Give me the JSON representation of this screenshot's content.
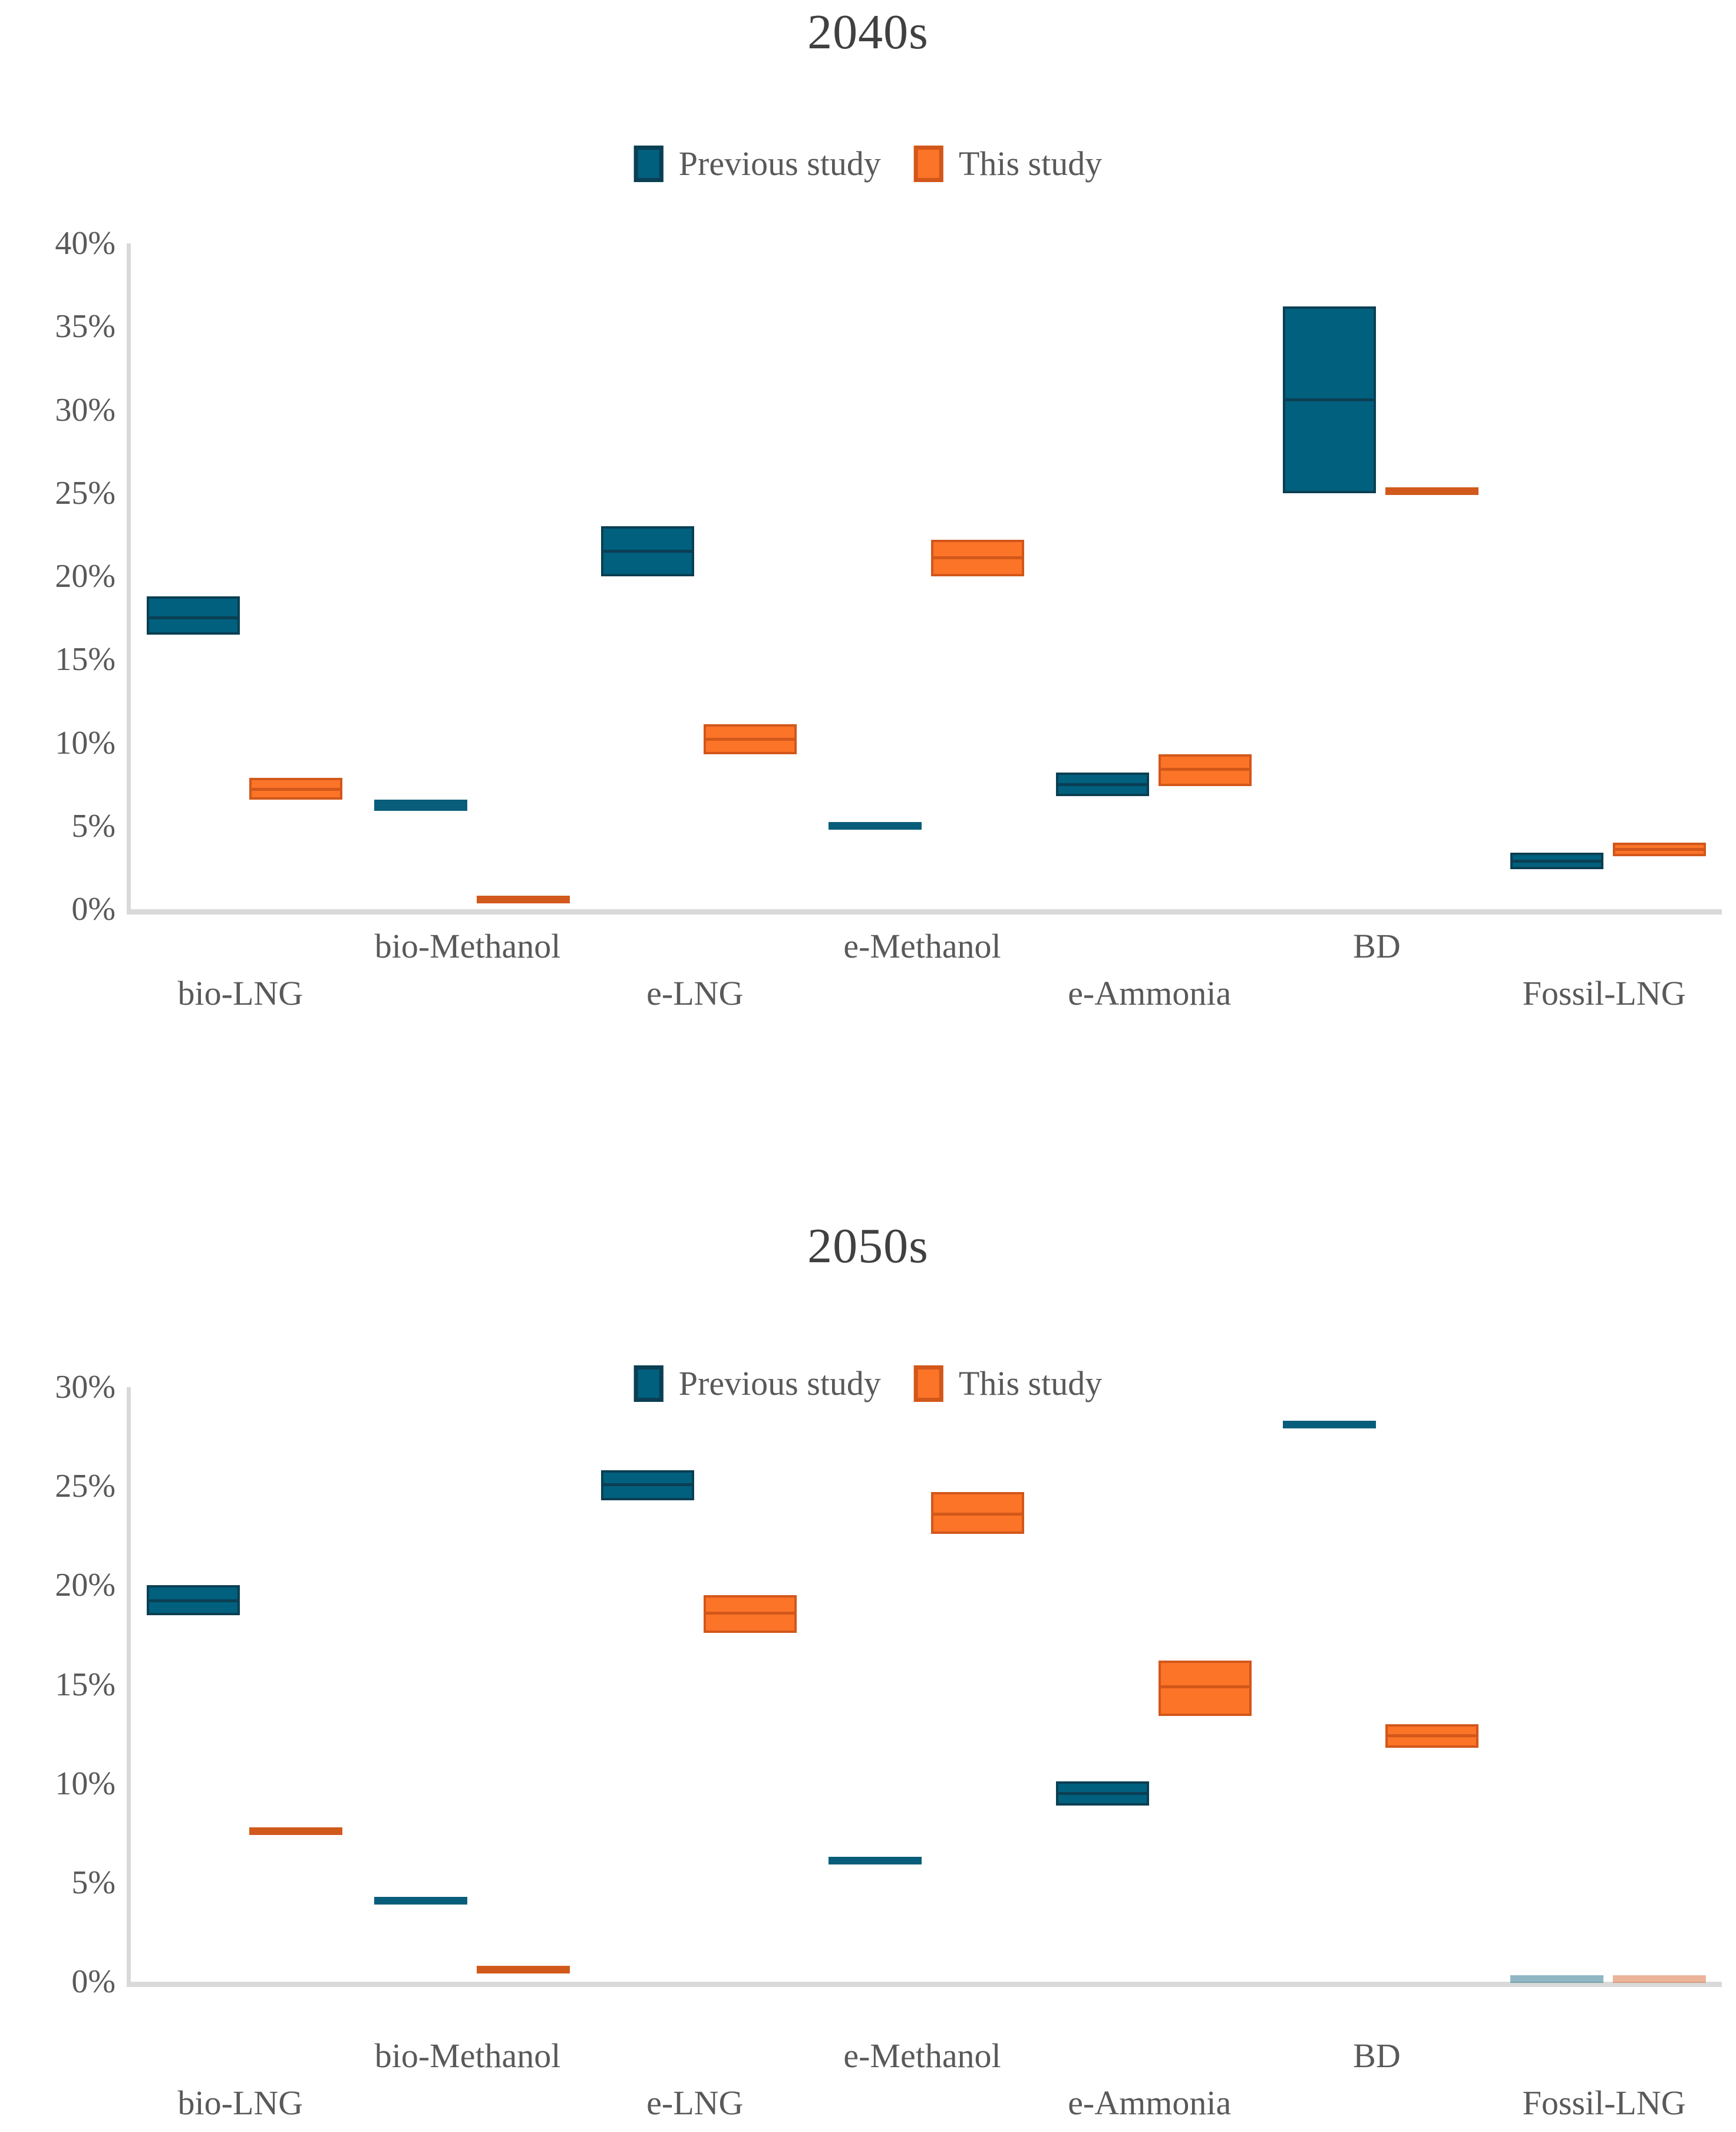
{
  "colors": {
    "previous_fill": "#01607E",
    "previous_border": "#0B3F53",
    "previous_line": "#085E7A",
    "this_fill": "#FB7428",
    "this_border": "#D2571A",
    "this_line": "#D2591C",
    "axis": "#D9D9D9",
    "tick_text": "#595959",
    "title_text": "#404040"
  },
  "legend": {
    "previous_label": "Previous study",
    "this_label": "This study"
  },
  "chart_data": [
    {
      "type": "box",
      "title": "2040s",
      "ylabel": "",
      "xlabel": "",
      "ylim": [
        0,
        40
      ],
      "ytick_step": 5,
      "ytick_format": "percent",
      "grid": false,
      "legend_position": "top-center",
      "categories": [
        {
          "label": "bio-LNG",
          "row": "lower"
        },
        {
          "label": "bio-Methanol",
          "row": "upper"
        },
        {
          "label": "e-LNG",
          "row": "lower"
        },
        {
          "label": "e-Methanol",
          "row": "upper"
        },
        {
          "label": "e-Ammonia",
          "row": "lower"
        },
        {
          "label": "BD",
          "row": "upper"
        },
        {
          "label": "Fossil-LNG",
          "row": "lower"
        }
      ],
      "series": [
        {
          "name": "Previous study",
          "boxes": [
            {
              "low": 16.5,
              "median": 17.5,
              "high": 18.8
            },
            {
              "low": 5.9,
              "median": 6.3,
              "high": 6.6
            },
            {
              "low": 20.0,
              "median": 21.5,
              "high": 23.0
            },
            {
              "low": 4.8,
              "median": 5.0,
              "high": 5.2
            },
            {
              "low": 6.8,
              "median": 7.5,
              "high": 8.2
            },
            {
              "low": 25.0,
              "median": 30.6,
              "high": 36.2
            },
            {
              "low": 2.4,
              "median": 2.9,
              "high": 3.4
            }
          ]
        },
        {
          "name": "This study",
          "boxes": [
            {
              "low": 6.6,
              "median": 7.2,
              "high": 7.9
            },
            {
              "low": 0.4,
              "median": 0.6,
              "high": 0.8
            },
            {
              "low": 9.3,
              "median": 10.2,
              "high": 11.1
            },
            {
              "low": 20.0,
              "median": 21.1,
              "high": 22.2
            },
            {
              "low": 7.4,
              "median": 8.4,
              "high": 9.3
            },
            {
              "low": 25.0,
              "median": 25.1,
              "high": 25.2
            },
            {
              "low": 3.2,
              "median": 3.6,
              "high": 4.0
            }
          ]
        }
      ]
    },
    {
      "type": "box",
      "title": "2050s",
      "ylabel": "",
      "xlabel": "",
      "ylim": [
        0,
        30
      ],
      "ytick_step": 5,
      "ytick_format": "percent",
      "grid": false,
      "legend_position": "top-center",
      "categories": [
        {
          "label": "bio-LNG",
          "row": "lower"
        },
        {
          "label": "bio-Methanol",
          "row": "upper"
        },
        {
          "label": "e-LNG",
          "row": "lower"
        },
        {
          "label": "e-Methanol",
          "row": "upper"
        },
        {
          "label": "e-Ammonia",
          "row": "lower"
        },
        {
          "label": "BD",
          "row": "upper"
        },
        {
          "label": "Fossil-LNG",
          "row": "lower"
        }
      ],
      "series": [
        {
          "name": "Previous study",
          "boxes": [
            {
              "low": 18.5,
              "median": 19.2,
              "high": 20.0
            },
            {
              "low": 4.0,
              "median": 4.1,
              "high": 4.2
            },
            {
              "low": 24.3,
              "median": 25.1,
              "high": 25.8
            },
            {
              "low": 6.0,
              "median": 6.1,
              "high": 6.2
            },
            {
              "low": 8.9,
              "median": 9.5,
              "high": 10.1
            },
            {
              "low": 28.0,
              "median": 28.1,
              "high": 28.2
            },
            {
              "low": 0.0,
              "median": 0.05,
              "high": 0.1,
              "faded": true
            }
          ]
        },
        {
          "name": "This study",
          "boxes": [
            {
              "low": 7.5,
              "median": 7.6,
              "high": 7.7
            },
            {
              "low": 0.5,
              "median": 0.6,
              "high": 0.7
            },
            {
              "low": 17.6,
              "median": 18.6,
              "high": 19.5
            },
            {
              "low": 22.6,
              "median": 23.6,
              "high": 24.7
            },
            {
              "low": 13.4,
              "median": 14.9,
              "high": 16.2
            },
            {
              "low": 11.8,
              "median": 12.4,
              "high": 13.0
            },
            {
              "low": 0.0,
              "median": 0.05,
              "high": 0.1,
              "faded": true
            }
          ]
        }
      ]
    }
  ]
}
